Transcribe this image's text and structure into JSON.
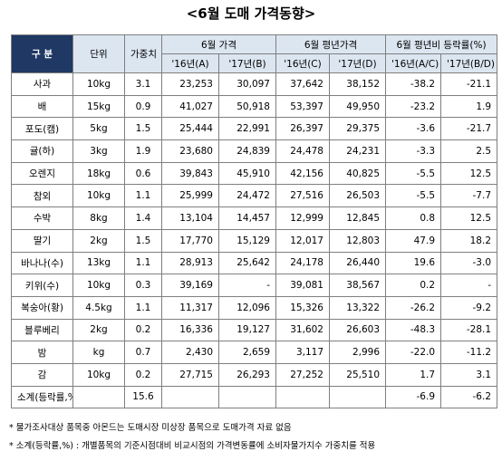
{
  "title": "<6월 도매 가격동향>",
  "table": {
    "header_top": {
      "item": "구 분",
      "unit": "단위",
      "weight": "가중치",
      "price": "6월 가격",
      "normal": "6월 평년가격",
      "ratio": "6월 평년비 등락률(%)"
    },
    "header_sub": [
      "'16년(A)",
      "'17년(B)",
      "'16년(C)",
      "'17년(D)",
      "'16년(A/C)",
      "'17년(B/D)"
    ],
    "rows": [
      [
        "사과",
        "10kg",
        "3.1",
        "23,253",
        "30,097",
        "37,642",
        "38,152",
        "-38.2",
        "-21.1"
      ],
      [
        "배",
        "15kg",
        "0.9",
        "41,027",
        "50,918",
        "53,397",
        "49,950",
        "-23.2",
        "1.9"
      ],
      [
        "포도(캠)",
        "5kg",
        "1.5",
        "25,444",
        "22,991",
        "26,397",
        "29,375",
        "-3.6",
        "-21.7"
      ],
      [
        "귤(하)",
        "3kg",
        "1.9",
        "23,680",
        "24,839",
        "24,478",
        "24,231",
        "-3.3",
        "2.5"
      ],
      [
        "오렌지",
        "18kg",
        "0.6",
        "39,843",
        "45,910",
        "42,156",
        "40,825",
        "-5.5",
        "12.5"
      ],
      [
        "참외",
        "10kg",
        "1.1",
        "25,999",
        "24,472",
        "27,516",
        "26,503",
        "-5.5",
        "-7.7"
      ],
      [
        "수박",
        "8kg",
        "1.4",
        "13,104",
        "14,457",
        "12,999",
        "12,845",
        "0.8",
        "12.5"
      ],
      [
        "딸기",
        "2kg",
        "1.5",
        "17,770",
        "15,129",
        "12,017",
        "12,803",
        "47.9",
        "18.2"
      ],
      [
        "바나나(수)",
        "13kg",
        "1.1",
        "28,913",
        "25,642",
        "24,178",
        "26,440",
        "19.6",
        "-3.0"
      ],
      [
        "키위(수)",
        "10kg",
        "0.3",
        "39,169",
        "-",
        "39,081",
        "38,567",
        "0.2",
        "-"
      ],
      [
        "복숭아(황)",
        "4.5kg",
        "1.1",
        "11,317",
        "12,096",
        "15,326",
        "13,322",
        "-26.2",
        "-9.2"
      ],
      [
        "블루베리",
        "2kg",
        "0.2",
        "16,336",
        "19,127",
        "31,602",
        "26,603",
        "-48.3",
        "-28.1"
      ],
      [
        "밤",
        "kg",
        "0.7",
        "2,430",
        "2,659",
        "3,117",
        "2,996",
        "-22.0",
        "-11.2"
      ],
      [
        "감",
        "10kg",
        "0.2",
        "27,715",
        "26,293",
        "27,252",
        "25,510",
        "1.7",
        "3.1"
      ],
      [
        "소계(등락률,%)",
        null,
        "15.6",
        null,
        null,
        null,
        null,
        "-6.9",
        "-6.2"
      ]
    ]
  },
  "notes": [
    "* 물가조사대상 품목중 아몬드는 도매시장 미상장 품목으로 도매가격 자료 없음",
    "* 소계(등락률,%) : 개별품목의 기준시점대비 비교시점의 가격변동률에 소비자물가지수 가중치를 적용"
  ]
}
